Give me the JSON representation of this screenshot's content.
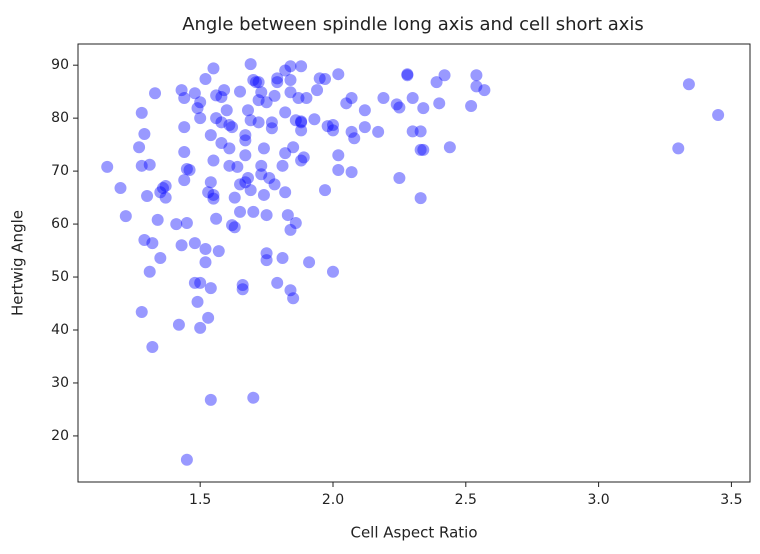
{
  "chart_data": {
    "type": "scatter",
    "title": "Angle between spindle long axis and cell short axis",
    "x_label": "Cell Aspect Ratio",
    "y_label": "Hertwig Angle",
    "color": "#0000ff",
    "opacity": 0.4,
    "xlim": [
      1.04,
      3.57
    ],
    "ylim": [
      11.3,
      94
    ],
    "xticks": [
      1.5,
      {
        "value": 2.0,
        "label": "2.0"
      },
      2.5,
      {
        "value": 3.0,
        "label": "3.0"
      },
      3.5
    ],
    "yticks": [
      20,
      30,
      40,
      50,
      60,
      70,
      80,
      90
    ],
    "grid": false,
    "x": [
      1.15,
      1.2,
      1.22,
      1.28,
      1.27,
      1.28,
      1.29,
      1.28,
      1.29,
      1.31,
      1.3,
      1.32,
      1.31,
      1.32,
      1.33,
      1.35,
      1.36,
      1.34,
      1.35,
      1.37,
      1.37,
      1.41,
      1.42,
      1.43,
      1.43,
      1.44,
      1.44,
      1.44,
      1.44,
      1.45,
      1.46,
      1.45,
      1.45,
      1.48,
      1.48,
      1.48,
      1.49,
      1.49,
      1.5,
      1.5,
      1.5,
      1.5,
      1.52,
      1.52,
      1.52,
      1.53,
      1.54,
      1.54,
      1.53,
      1.55,
      1.55,
      1.54,
      1.55,
      1.54,
      1.55,
      1.56,
      1.56,
      1.56,
      1.58,
      1.57,
      1.58,
      1.58,
      1.59,
      1.6,
      1.61,
      1.61,
      1.61,
      1.62,
      1.62,
      1.63,
      1.63,
      1.64,
      1.65,
      1.65,
      1.65,
      1.66,
      1.66,
      1.67,
      1.67,
      1.67,
      1.67,
      1.68,
      1.68,
      1.69,
      1.69,
      1.69,
      1.7,
      1.7,
      1.7,
      1.71,
      1.72,
      1.72,
      1.72,
      1.73,
      1.73,
      1.73,
      1.74,
      1.74,
      1.75,
      1.75,
      1.75,
      1.75,
      1.76,
      1.77,
      1.78,
      1.78,
      1.77,
      1.79,
      1.79,
      1.79,
      1.81,
      1.81,
      1.82,
      1.82,
      1.82,
      1.82,
      1.83,
      1.84,
      1.84,
      1.84,
      1.84,
      1.84,
      1.85,
      1.85,
      1.86,
      1.86,
      1.87,
      1.88,
      1.88,
      1.88,
      1.88,
      1.88,
      1.89,
      1.9,
      1.91,
      1.93,
      1.94,
      1.95,
      1.97,
      1.97,
      1.98,
      2.0,
      2.0,
      2.0,
      2.02,
      2.02,
      2.02,
      2.05,
      2.07,
      2.07,
      2.07,
      2.08,
      2.12,
      2.12,
      2.17,
      2.19,
      2.24,
      2.25,
      2.25,
      2.28,
      2.28,
      2.3,
      2.3,
      2.33,
      2.33,
      2.34,
      2.33,
      2.34,
      2.39,
      2.4,
      2.42,
      2.44,
      2.52,
      2.54,
      2.54,
      2.57,
      3.3,
      3.34,
      3.45
    ],
    "values": [
      70.8,
      66.8,
      61.5,
      43.4,
      74.5,
      81,
      77,
      71,
      57,
      71.2,
      65.3,
      56.4,
      51,
      36.8,
      84.7,
      66,
      66.8,
      60.8,
      53.6,
      67.2,
      65,
      60,
      41,
      56,
      85.3,
      83.8,
      78.3,
      73.6,
      68.3,
      70.4,
      70.2,
      60.2,
      15.5,
      84.7,
      48.9,
      56.4,
      45.3,
      81.9,
      80,
      83,
      48.9,
      40.4,
      87.4,
      55.3,
      52.8,
      42.3,
      47.9,
      26.8,
      66,
      65.5,
      64.8,
      67.9,
      89.4,
      76.8,
      72,
      80,
      61,
      84.3,
      79.2,
      54.9,
      75.3,
      84,
      85.3,
      81.5,
      71,
      74.3,
      78.7,
      78.3,
      59.8,
      65,
      59.4,
      70.8,
      85,
      67.5,
      62.3,
      47.7,
      48.5,
      73,
      76.8,
      67.9,
      75.8,
      81.5,
      68.7,
      90.2,
      79.6,
      66.4,
      62.3,
      27.2,
      87.2,
      86.8,
      79.2,
      83.4,
      86.8,
      71,
      84.9,
      69.4,
      65.5,
      74.3,
      61.7,
      83,
      54.5,
      53.2,
      68.7,
      79.2,
      84.2,
      67.5,
      78.1,
      86.8,
      48.9,
      87.5,
      71,
      53.6,
      89,
      73.4,
      66,
      81.1,
      61.7,
      84.9,
      58.9,
      47.5,
      89.8,
      87.2,
      74.5,
      46,
      79.6,
      60.2,
      83.8,
      89.8,
      77.7,
      79.4,
      72,
      79.2,
      72.6,
      83.8,
      52.8,
      79.8,
      85.3,
      87.5,
      66.4,
      87.4,
      78.5,
      77.7,
      51,
      78.7,
      73,
      70.2,
      88.3,
      82.8,
      83.8,
      69.8,
      77.4,
      76.2,
      81.5,
      78.3,
      77.4,
      83.8,
      82.6,
      82,
      68.7,
      88.3,
      88.1,
      77.5,
      83.8,
      77.5,
      74,
      74,
      64.9,
      81.9,
      86.8,
      82.8,
      88.1,
      74.5,
      82.3,
      88.1,
      86,
      85.3,
      74.3,
      86.4,
      80.6
    ]
  }
}
